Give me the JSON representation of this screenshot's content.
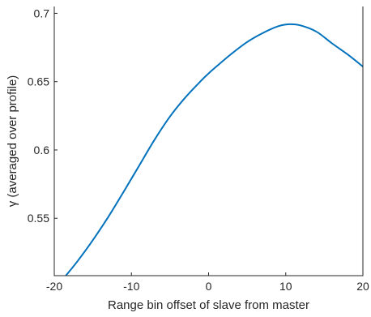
{
  "chart_data": {
    "type": "line",
    "title": "",
    "xlabel": "Range bin offset of slave from master",
    "ylabel": "γ (averaged over profile)",
    "xlim": [
      -20,
      20
    ],
    "ylim": [
      0.508,
      0.705
    ],
    "grid": false,
    "legend": "none",
    "x_ticks": [
      -20,
      -10,
      0,
      10,
      20
    ],
    "x_tick_labels": [
      "-20",
      "-10",
      "0",
      "10",
      "20"
    ],
    "y_ticks": [
      0.55,
      0.6,
      0.65,
      0.7
    ],
    "y_tick_labels": [
      "0.55",
      "0.6",
      "0.65",
      "0.7"
    ],
    "series": [
      {
        "color": "#0072BD",
        "x": [
          -18.5,
          -17,
          -15,
          -13,
          -11,
          -9,
          -7,
          -5,
          -3,
          -1,
          0,
          1,
          3,
          5,
          7,
          9,
          10.5,
          12,
          14,
          16,
          18,
          20
        ],
        "y": [
          0.508,
          0.5185,
          0.534,
          0.551,
          0.5695,
          0.5885,
          0.6075,
          0.6245,
          0.6385,
          0.6505,
          0.656,
          0.661,
          0.6705,
          0.679,
          0.6855,
          0.6905,
          0.692,
          0.691,
          0.6865,
          0.678,
          0.67,
          0.661
        ]
      }
    ]
  }
}
